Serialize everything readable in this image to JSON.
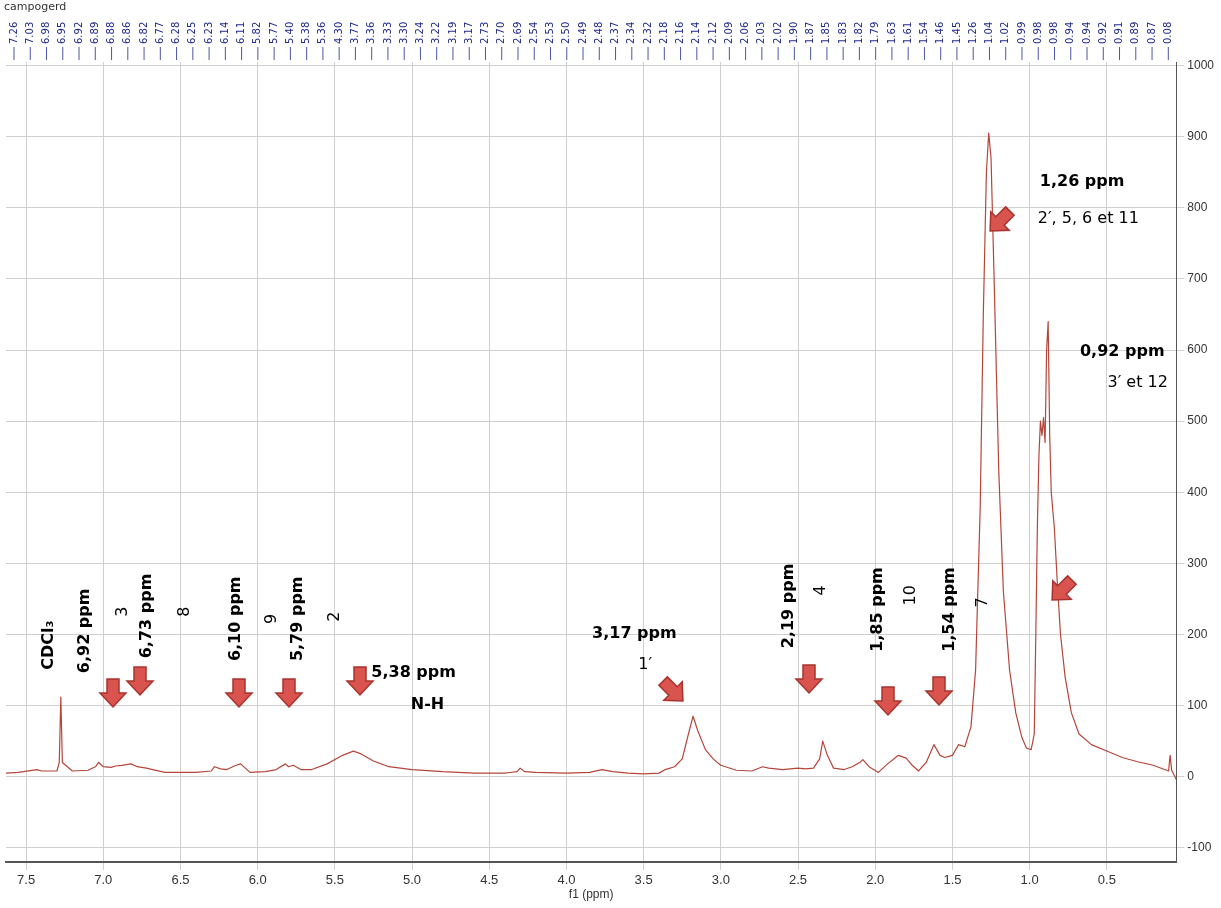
{
  "chart_data": {
    "type": "line",
    "xlabel": "f1 (ppm)",
    "xlim": [
      7.63,
      0.05
    ],
    "ylim": [
      -120,
      1005
    ],
    "xticks": [
      7.5,
      {
        "value": 7,
        "label": "7.0"
      },
      6.5,
      {
        "value": 6,
        "label": "6.0"
      },
      5.5,
      {
        "value": 5,
        "label": "5.0"
      },
      4.5,
      {
        "value": 4,
        "label": "4.0"
      },
      3.5,
      {
        "value": 3,
        "label": "3.0"
      },
      2.5,
      {
        "value": 2,
        "label": "2.0"
      },
      1.5,
      {
        "value": 1,
        "label": "1.0"
      },
      0.5
    ],
    "yticks": [
      -100,
      0,
      100,
      200,
      300,
      400,
      500,
      600,
      700,
      800,
      900,
      1000
    ],
    "grid": true,
    "legend": false,
    "marker": "none",
    "line_style": "solid",
    "series": [
      {
        "color": "#b5453a",
        "x": [
          7.63,
          7.55,
          7.43,
          7.4,
          7.3,
          7.285,
          7.275,
          7.265,
          7.2,
          7.1,
          7.05,
          7.03,
          7.0,
          6.95,
          6.92,
          6.88,
          6.85,
          6.82,
          6.78,
          6.72,
          6.68,
          6.6,
          6.5,
          6.4,
          6.3,
          6.28,
          6.24,
          6.2,
          6.14,
          6.11,
          6.08,
          6.05,
          5.95,
          5.88,
          5.82,
          5.8,
          5.77,
          5.72,
          5.65,
          5.55,
          5.45,
          5.38,
          5.33,
          5.25,
          5.15,
          5.0,
          4.8,
          4.6,
          4.4,
          4.32,
          4.3,
          4.27,
          4.2,
          4.0,
          3.85,
          3.77,
          3.7,
          3.6,
          3.5,
          3.4,
          3.36,
          3.3,
          3.25,
          3.21,
          3.18,
          3.15,
          3.1,
          3.05,
          3.0,
          2.9,
          2.8,
          2.73,
          2.69,
          2.6,
          2.5,
          2.45,
          2.4,
          2.36,
          2.34,
          2.31,
          2.27,
          2.2,
          2.15,
          2.1,
          2.08,
          2.04,
          1.98,
          1.92,
          1.85,
          1.8,
          1.76,
          1.72,
          1.67,
          1.62,
          1.58,
          1.55,
          1.5,
          1.46,
          1.42,
          1.38,
          1.35,
          1.32,
          1.3,
          1.28,
          1.265,
          1.25,
          1.23,
          1.2,
          1.17,
          1.13,
          1.09,
          1.05,
          1.02,
          0.99,
          0.97,
          0.96,
          0.95,
          0.94,
          0.93,
          0.92,
          0.91,
          0.9,
          0.89,
          0.88,
          0.87,
          0.86,
          0.84,
          0.82,
          0.8,
          0.77,
          0.73,
          0.68,
          0.6,
          0.5,
          0.4,
          0.3,
          0.2,
          0.1,
          0.09,
          0.08,
          0.05
        ],
        "values": [
          5,
          6,
          10,
          8,
          8,
          20,
          112,
          20,
          8,
          9,
          14,
          20,
          14,
          13,
          15,
          16,
          17,
          18,
          14,
          12,
          10,
          6,
          6,
          6,
          8,
          14,
          11,
          10,
          16,
          18,
          12,
          6,
          7,
          10,
          18,
          14,
          16,
          10,
          10,
          18,
          30,
          36,
          32,
          22,
          14,
          10,
          7,
          5,
          5,
          7,
          12,
          7,
          6,
          5,
          6,
          10,
          7,
          5,
          4,
          5,
          10,
          14,
          25,
          60,
          85,
          65,
          38,
          25,
          16,
          9,
          8,
          14,
          12,
          10,
          12,
          11,
          12,
          25,
          50,
          30,
          12,
          10,
          14,
          20,
          24,
          14,
          6,
          18,
          30,
          26,
          16,
          8,
          20,
          45,
          30,
          27,
          30,
          45,
          42,
          70,
          150,
          380,
          650,
          850,
          905,
          870,
          700,
          430,
          260,
          150,
          90,
          55,
          40,
          38,
          60,
          200,
          350,
          450,
          500,
          480,
          505,
          470,
          600,
          640,
          480,
          400,
          350,
          270,
          200,
          140,
          90,
          60,
          45,
          36,
          27,
          21,
          16,
          8,
          30,
          9,
          -4
        ]
      }
    ],
    "annotations": [
      "campogerd",
      "CDCl₃",
      "6,92 ppm",
      "3",
      "6,73 ppm",
      "8",
      "6,10 ppm",
      "9",
      "5,79 ppm",
      "2",
      "5,38 ppm",
      "N-H",
      "3,17 ppm",
      "1′",
      "2,19 ppm",
      "4",
      "1,85 ppm",
      "10",
      "1,54 ppm",
      "7",
      "1,26 ppm",
      "2′, 5, 6 et 11",
      "0,92 ppm",
      "3′ et 12",
      "7.26",
      "7.03",
      "6.98",
      "6.95",
      "6.92",
      "6.89",
      "6.88",
      "6.86",
      "6.82",
      "6.77",
      "6.28",
      "6.25",
      "6.23",
      "6.14",
      "6.11",
      "5.82",
      "5.77",
      "5.40",
      "5.38",
      "5.36",
      "4.30",
      "3.77",
      "3.36",
      "3.33",
      "3.30",
      "3.24",
      "3.22",
      "3.19",
      "3.17",
      "2.73",
      "2.70",
      "2.69",
      "2.54",
      "2.53",
      "2.50",
      "2.49",
      "2.48",
      "2.37",
      "2.34",
      "2.32",
      "2.18",
      "2.16",
      "2.14",
      "2.12",
      "2.09",
      "2.06",
      "2.03",
      "2.02",
      "1.90",
      "1.87",
      "1.85",
      "1.83",
      "1.82",
      "1.79",
      "1.63",
      "1.61",
      "1.54",
      "1.46",
      "1.45",
      "1.26",
      "1.04",
      "1.02",
      "0.99",
      "0.98",
      "0.98",
      "0.94",
      "0.94",
      "0.92",
      "0.91",
      "0.89",
      "0.87",
      "0.08"
    ]
  }
}
